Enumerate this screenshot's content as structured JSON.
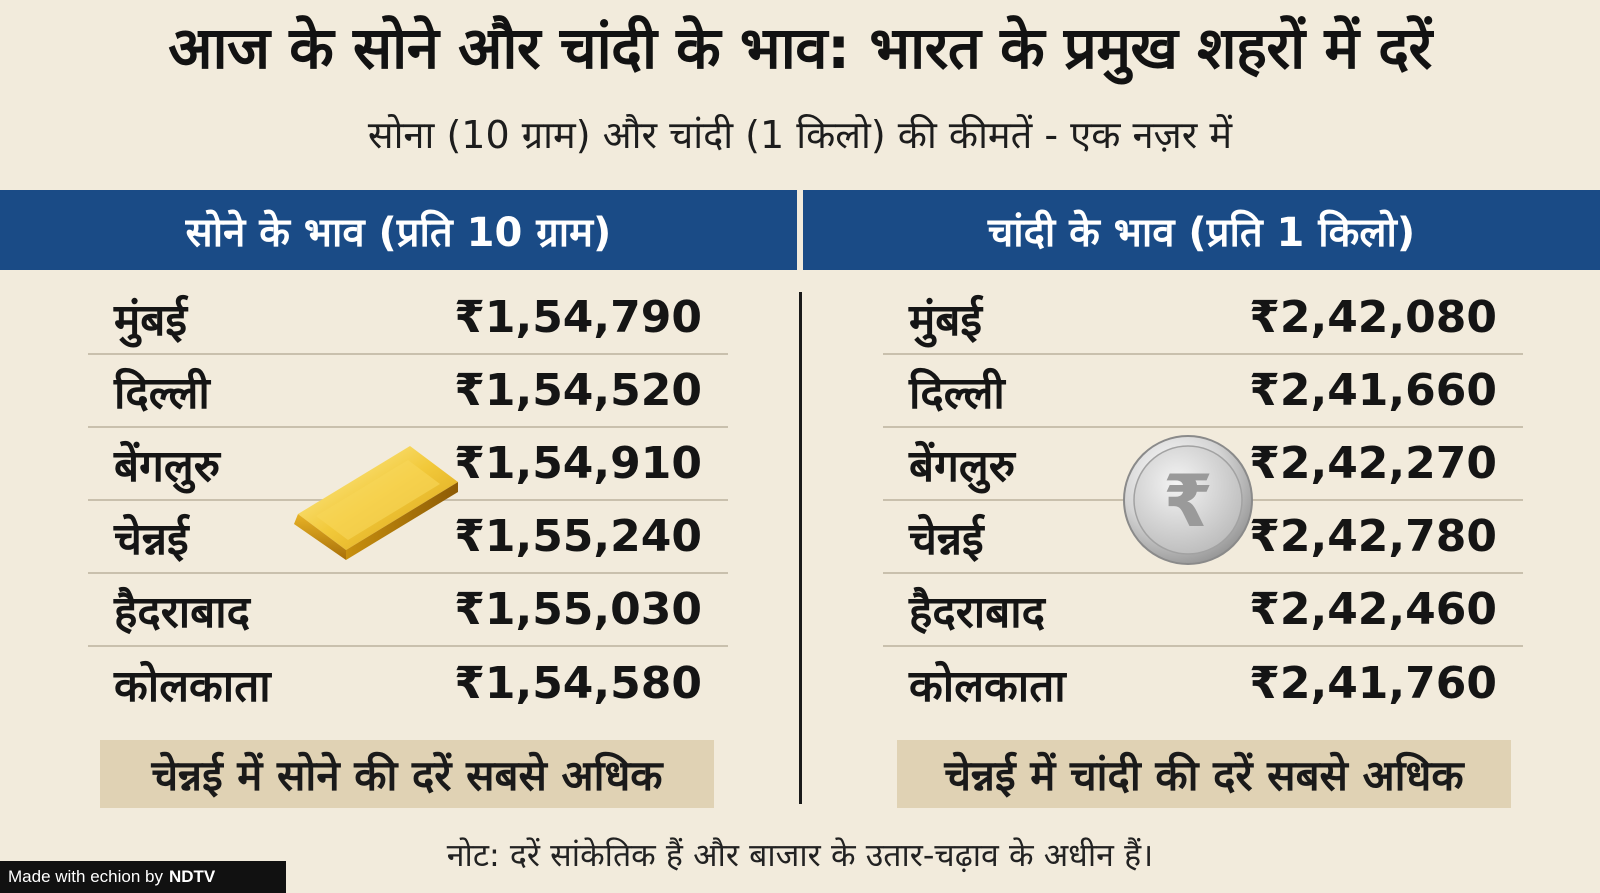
{
  "header": {
    "title": "आज के सोने और चांदी के भाव: भारत के प्रमुख शहरों में दरें",
    "subtitle": "सोना (10 ग्राम) और चांदी (1 किलो) की कीमतें - एक नज़र में"
  },
  "gold": {
    "heading": "सोने के भाव (प्रति 10 ग्राम)",
    "rows": [
      {
        "city": "मुंबई",
        "price": "₹1,54,790"
      },
      {
        "city": "दिल्ली",
        "price": "₹1,54,520"
      },
      {
        "city": "बेंगलुरु",
        "price": "₹1,54,910"
      },
      {
        "city": "चेन्नई",
        "price": "₹1,55,240"
      },
      {
        "city": "हैदराबाद",
        "price": "₹1,55,030"
      },
      {
        "city": "कोलकाता",
        "price": "₹1,54,580"
      }
    ],
    "highlight": "चेन्नई में सोने की दरें सबसे अधिक",
    "icon": "gold-bar-icon"
  },
  "silver": {
    "heading": "चांदी के भाव (प्रति 1 किलो)",
    "rows": [
      {
        "city": "मुंबई",
        "price": "₹2,42,080"
      },
      {
        "city": "दिल्ली",
        "price": "₹2,41,660"
      },
      {
        "city": "बेंगलुरु",
        "price": "₹2,42,270"
      },
      {
        "city": "चेन्नई",
        "price": "₹2,42,780"
      },
      {
        "city": "हैदराबाद",
        "price": "₹2,42,460"
      },
      {
        "city": "कोलकाता",
        "price": "₹2,41,760"
      }
    ],
    "highlight": "चेन्नई में चांदी की दरें सबसे अधिक",
    "icon": "silver-rupee-coin-icon",
    "coin_symbol": "₹"
  },
  "note": "नोट: दरें सांकेतिक हैं और बाजार के उतार-चढ़ाव के अधीन हैं।",
  "badge": {
    "prefix": "Made with echion by",
    "brand": "NDTV"
  },
  "colors": {
    "background": "#f2ebdc",
    "band": "#1a4b86",
    "highlight": "#e0d2b4"
  }
}
